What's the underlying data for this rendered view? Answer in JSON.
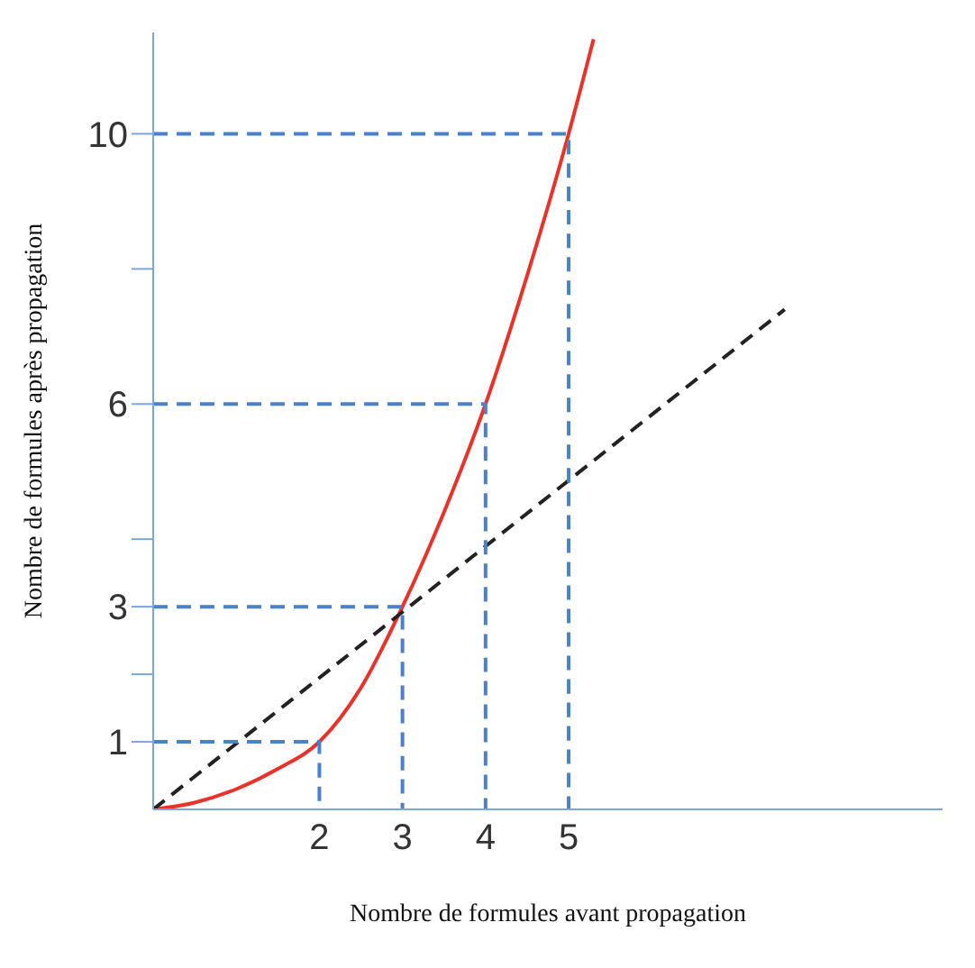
{
  "chart_data": {
    "type": "line",
    "xlabel": "Nombre de formules avant propagation",
    "ylabel": "Nombre de formules après propagation",
    "xlim": [
      0,
      9.5
    ],
    "ylim": [
      0,
      11.5
    ],
    "xticks": [
      2,
      3,
      4,
      5
    ],
    "yticks": [
      1,
      {
        "value": 2,
        "label": null
      },
      3,
      {
        "value": 4,
        "label": null
      },
      6,
      {
        "value": 8,
        "label": null
      },
      10
    ],
    "marker": "none",
    "series": [
      {
        "color": "#e8332a",
        "line_style": "solid",
        "x": [
          0,
          0.5,
          1,
          1.5,
          2,
          2.5,
          3,
          3.5,
          4,
          4.5,
          5,
          5.3
        ],
        "values": [
          0,
          0.1,
          0.3,
          0.6,
          1,
          1.8,
          3,
          4.4,
          6,
          7.9,
          10,
          11.4
        ]
      },
      {
        "color": "#222222",
        "line_style": "dashed",
        "x": [
          0,
          7.6
        ],
        "values": [
          0,
          7.4
        ]
      },
      {
        "color": "#4a80cc",
        "line_style": "dashed",
        "x": [
          0,
          2,
          2
        ],
        "values": [
          1,
          1,
          0
        ]
      },
      {
        "color": "#4a80cc",
        "line_style": "dashed",
        "x": [
          0,
          3,
          3
        ],
        "values": [
          3,
          3,
          0
        ]
      },
      {
        "color": "#4a80cc",
        "line_style": "dashed",
        "x": [
          0,
          4,
          4
        ],
        "values": [
          6,
          6,
          0
        ]
      },
      {
        "color": "#4a80cc",
        "line_style": "dashed",
        "x": [
          0,
          5,
          5
        ],
        "values": [
          10,
          10,
          0
        ]
      }
    ]
  }
}
